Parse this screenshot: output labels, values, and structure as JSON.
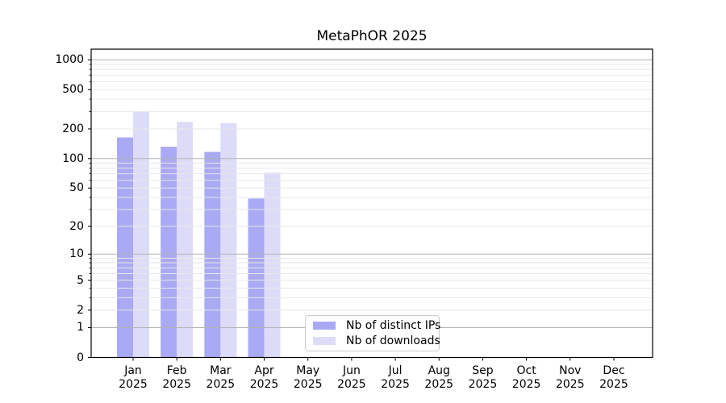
{
  "figure": {
    "title": "MetaPhOR 2025"
  },
  "chart_data": {
    "type": "bar",
    "title": "MetaPhOR 2025",
    "categories": [
      "Jan",
      "Feb",
      "Mar",
      "Apr",
      "May",
      "Jun",
      "Jul",
      "Aug",
      "Sep",
      "Oct",
      "Nov",
      "Dec"
    ],
    "year_label": "2025",
    "series": [
      {
        "name": "Nb of distinct IPs",
        "color": "#a9a9f4",
        "values": [
          164,
          132,
          117,
          39,
          0,
          0,
          0,
          0,
          0,
          0,
          0,
          0
        ]
      },
      {
        "name": "Nb of downloads",
        "color": "#dcdcf8",
        "values": [
          299,
          236,
          229,
          72,
          0,
          0,
          0,
          0,
          0,
          0,
          0,
          0
        ]
      }
    ],
    "xlabel": "",
    "ylabel": "",
    "yscale": "log1p",
    "ylim": [
      0,
      1000
    ],
    "yticks": [
      0,
      1,
      2,
      5,
      10,
      20,
      50,
      100,
      200,
      500,
      1000
    ],
    "grid": {
      "major_lines": [
        1,
        10,
        100,
        1000
      ],
      "minor_subs": [
        2,
        3,
        4,
        5,
        6,
        7,
        8,
        9
      ],
      "major_color": "#b3b3b3",
      "minor_color": "#e7e7e7"
    },
    "legend_position": "lower center",
    "axis_color": "#000000",
    "background_color": "#ffffff"
  }
}
